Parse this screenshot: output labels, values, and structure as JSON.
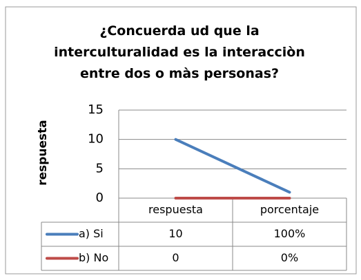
{
  "chart_data": {
    "type": "line",
    "title": "¿Concuerda ud que la interculturalidad es la interacciòn entre dos o màs personas?",
    "y_label": "respuesta",
    "categories": [
      "respuesta",
      "porcentaje"
    ],
    "series": [
      {
        "name": "a) Si",
        "color": "#4a7ebb",
        "values": [
          10,
          1
        ],
        "value_labels": [
          "10",
          "100%"
        ]
      },
      {
        "name": "b) No",
        "color": "#be4b48",
        "values": [
          0,
          0
        ],
        "value_labels": [
          "0",
          "0%"
        ]
      }
    ],
    "ylim": [
      0,
      15
    ],
    "yticks": [
      0,
      5,
      10,
      15
    ],
    "grid": true
  }
}
